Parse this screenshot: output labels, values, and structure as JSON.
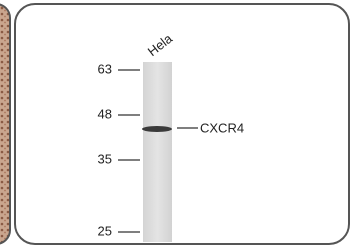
{
  "lane_label": "Hela",
  "markers": [
    "63",
    "48",
    "35",
    "25"
  ],
  "target": "CXCR4"
}
